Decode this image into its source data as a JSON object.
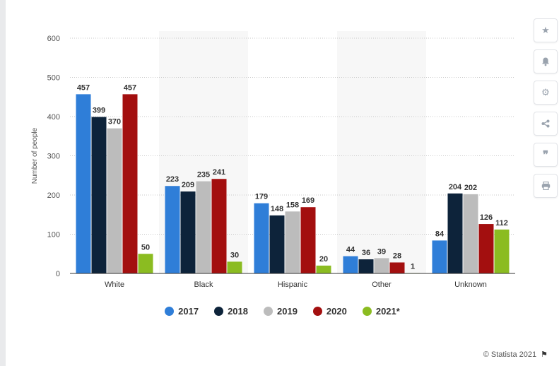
{
  "chart_data": {
    "type": "bar",
    "ylabel": "Number of people",
    "ylim": [
      0,
      600
    ],
    "yticks": [
      0,
      100,
      200,
      300,
      400,
      500,
      600
    ],
    "categories": [
      "White",
      "Black",
      "Hispanic",
      "Other",
      "Unknown"
    ],
    "series": [
      {
        "name": "2017",
        "color": "#2f7ed8",
        "values": [
          457,
          223,
          179,
          44,
          84
        ]
      },
      {
        "name": "2018",
        "color": "#0d233a",
        "values": [
          399,
          209,
          148,
          36,
          204
        ]
      },
      {
        "name": "2019",
        "color": "#bcbcbc",
        "values": [
          370,
          235,
          158,
          39,
          202
        ]
      },
      {
        "name": "2020",
        "color": "#a30f0f",
        "values": [
          457,
          241,
          169,
          28,
          126
        ]
      },
      {
        "name": "2021*",
        "color": "#8bbc21",
        "values": [
          50,
          30,
          20,
          1,
          112
        ]
      }
    ],
    "legend_position": "bottom",
    "grid": true
  },
  "toolbar": {
    "icons": [
      "star-icon",
      "bell-icon",
      "gear-icon",
      "share-icon",
      "quote-icon",
      "print-icon"
    ]
  },
  "credit": {
    "text": "© Statista 2021"
  }
}
